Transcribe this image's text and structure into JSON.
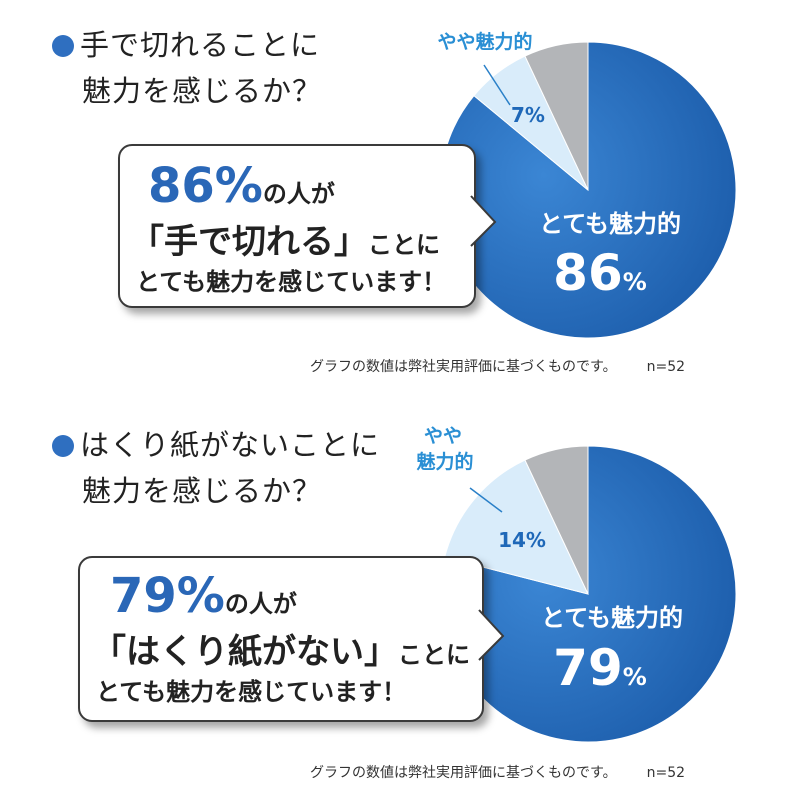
{
  "charts": [
    {
      "question_line1": "手で切れることに",
      "question_line2": "魅力を感じるか？",
      "bubble": {
        "percent": "86%",
        "percent_suffix": "の人が",
        "emphasis": "「手で切れる」",
        "emphasis_suffix": "ことに",
        "line3": "とても魅力を感じています！"
      },
      "footnote": "グラフの数値は弊社実用評価に基づくものです。",
      "sample": "n=52"
    },
    {
      "question_line1": "はくり紙がないことに",
      "question_line2": "魅力を感じるか？",
      "bubble": {
        "percent": "79%",
        "percent_suffix": "の人が",
        "emphasis": "「はくり紙がない」",
        "emphasis_suffix": "ことに",
        "line3": "とても魅力を感じています！"
      },
      "footnote": "グラフの数値は弊社実用評価に基づくものです。",
      "sample": "n=52"
    }
  ],
  "colors": {
    "very": "#1f68b8",
    "somewhat": "#d9ecfa",
    "other": "#b3b5b8",
    "accent": "#2a67b7"
  },
  "chart_data": [
    {
      "type": "pie",
      "title": "手で切れることに魅力を感じるか？",
      "slices": [
        {
          "label": "とても魅力的",
          "value": 86,
          "value_label": "86",
          "unit": "%"
        },
        {
          "label": "やや魅力的",
          "value": 7,
          "value_label": "7%"
        },
        {
          "label": "",
          "value": 7
        }
      ]
    },
    {
      "type": "pie",
      "title": "はくり紙がないことに魅力を感じるか？",
      "slices": [
        {
          "label": "とても魅力的",
          "value": 79,
          "value_label": "79",
          "unit": "%"
        },
        {
          "label_line1": "やや",
          "label_line2": "魅力的",
          "value": 14,
          "value_label": "14%"
        },
        {
          "label": "",
          "value": 7
        }
      ]
    }
  ]
}
